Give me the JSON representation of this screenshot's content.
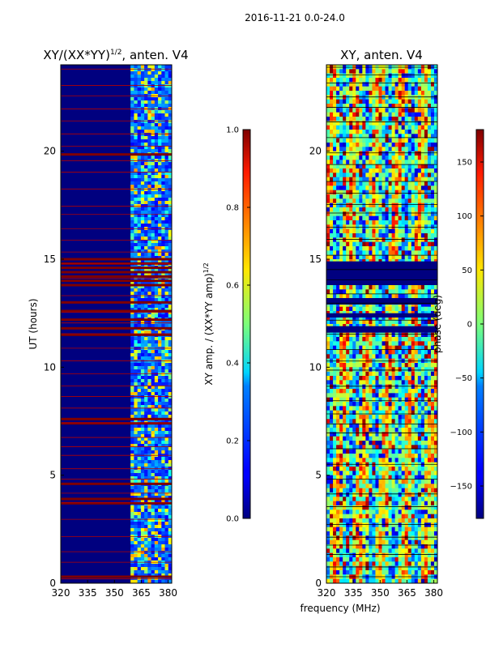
{
  "suptitle": "2016-11-21 0.0-24.0",
  "chart_data": [
    {
      "type": "heatmap",
      "title": "XY/(XX*YY)",
      "title_sup": "1/2",
      "title_suffix": ", anten. V4",
      "xlabel": "",
      "ylabel": "UT (hours)",
      "xlim": [
        320,
        382
      ],
      "ylim": [
        0,
        24
      ],
      "xticks": [
        "320",
        "335",
        "350",
        "365",
        "380"
      ],
      "xtick_values": [
        320,
        335,
        350,
        365,
        380
      ],
      "yticks": [
        "0",
        "5",
        "10",
        "15",
        "20"
      ],
      "ytick_values": [
        0,
        5,
        10,
        15,
        20
      ],
      "rfi_band_start_mhz": 359,
      "colorbar": {
        "label": "XY amp. / (XX*YY amp)",
        "label_sup": "1/2",
        "range": [
          0.0,
          1.0
        ],
        "ticks": [
          "0.0",
          "0.2",
          "0.4",
          "0.6",
          "0.8",
          "1.0"
        ],
        "tick_values": [
          0.0,
          0.2,
          0.4,
          0.6,
          0.8,
          1.0
        ]
      }
    },
    {
      "type": "heatmap",
      "title": "XY, anten. V4",
      "xlabel": "frequency (MHz)",
      "ylabel": "",
      "xlim": [
        320,
        382
      ],
      "ylim": [
        0,
        24
      ],
      "xticks": [
        "320",
        "335",
        "350",
        "365",
        "380"
      ],
      "xtick_values": [
        320,
        335,
        350,
        365,
        380
      ],
      "yticks": [
        "0",
        "5",
        "10",
        "15",
        "20"
      ],
      "ytick_values": [
        0,
        5,
        10,
        15,
        20
      ],
      "colorbar": {
        "label": "phase (deg)",
        "range": [
          -180,
          180
        ],
        "ticks": [
          "−150",
          "−100",
          "−50",
          "0",
          "50",
          "100",
          "150"
        ],
        "tick_values": [
          -150,
          -100,
          -50,
          0,
          50,
          100,
          150
        ]
      }
    }
  ]
}
